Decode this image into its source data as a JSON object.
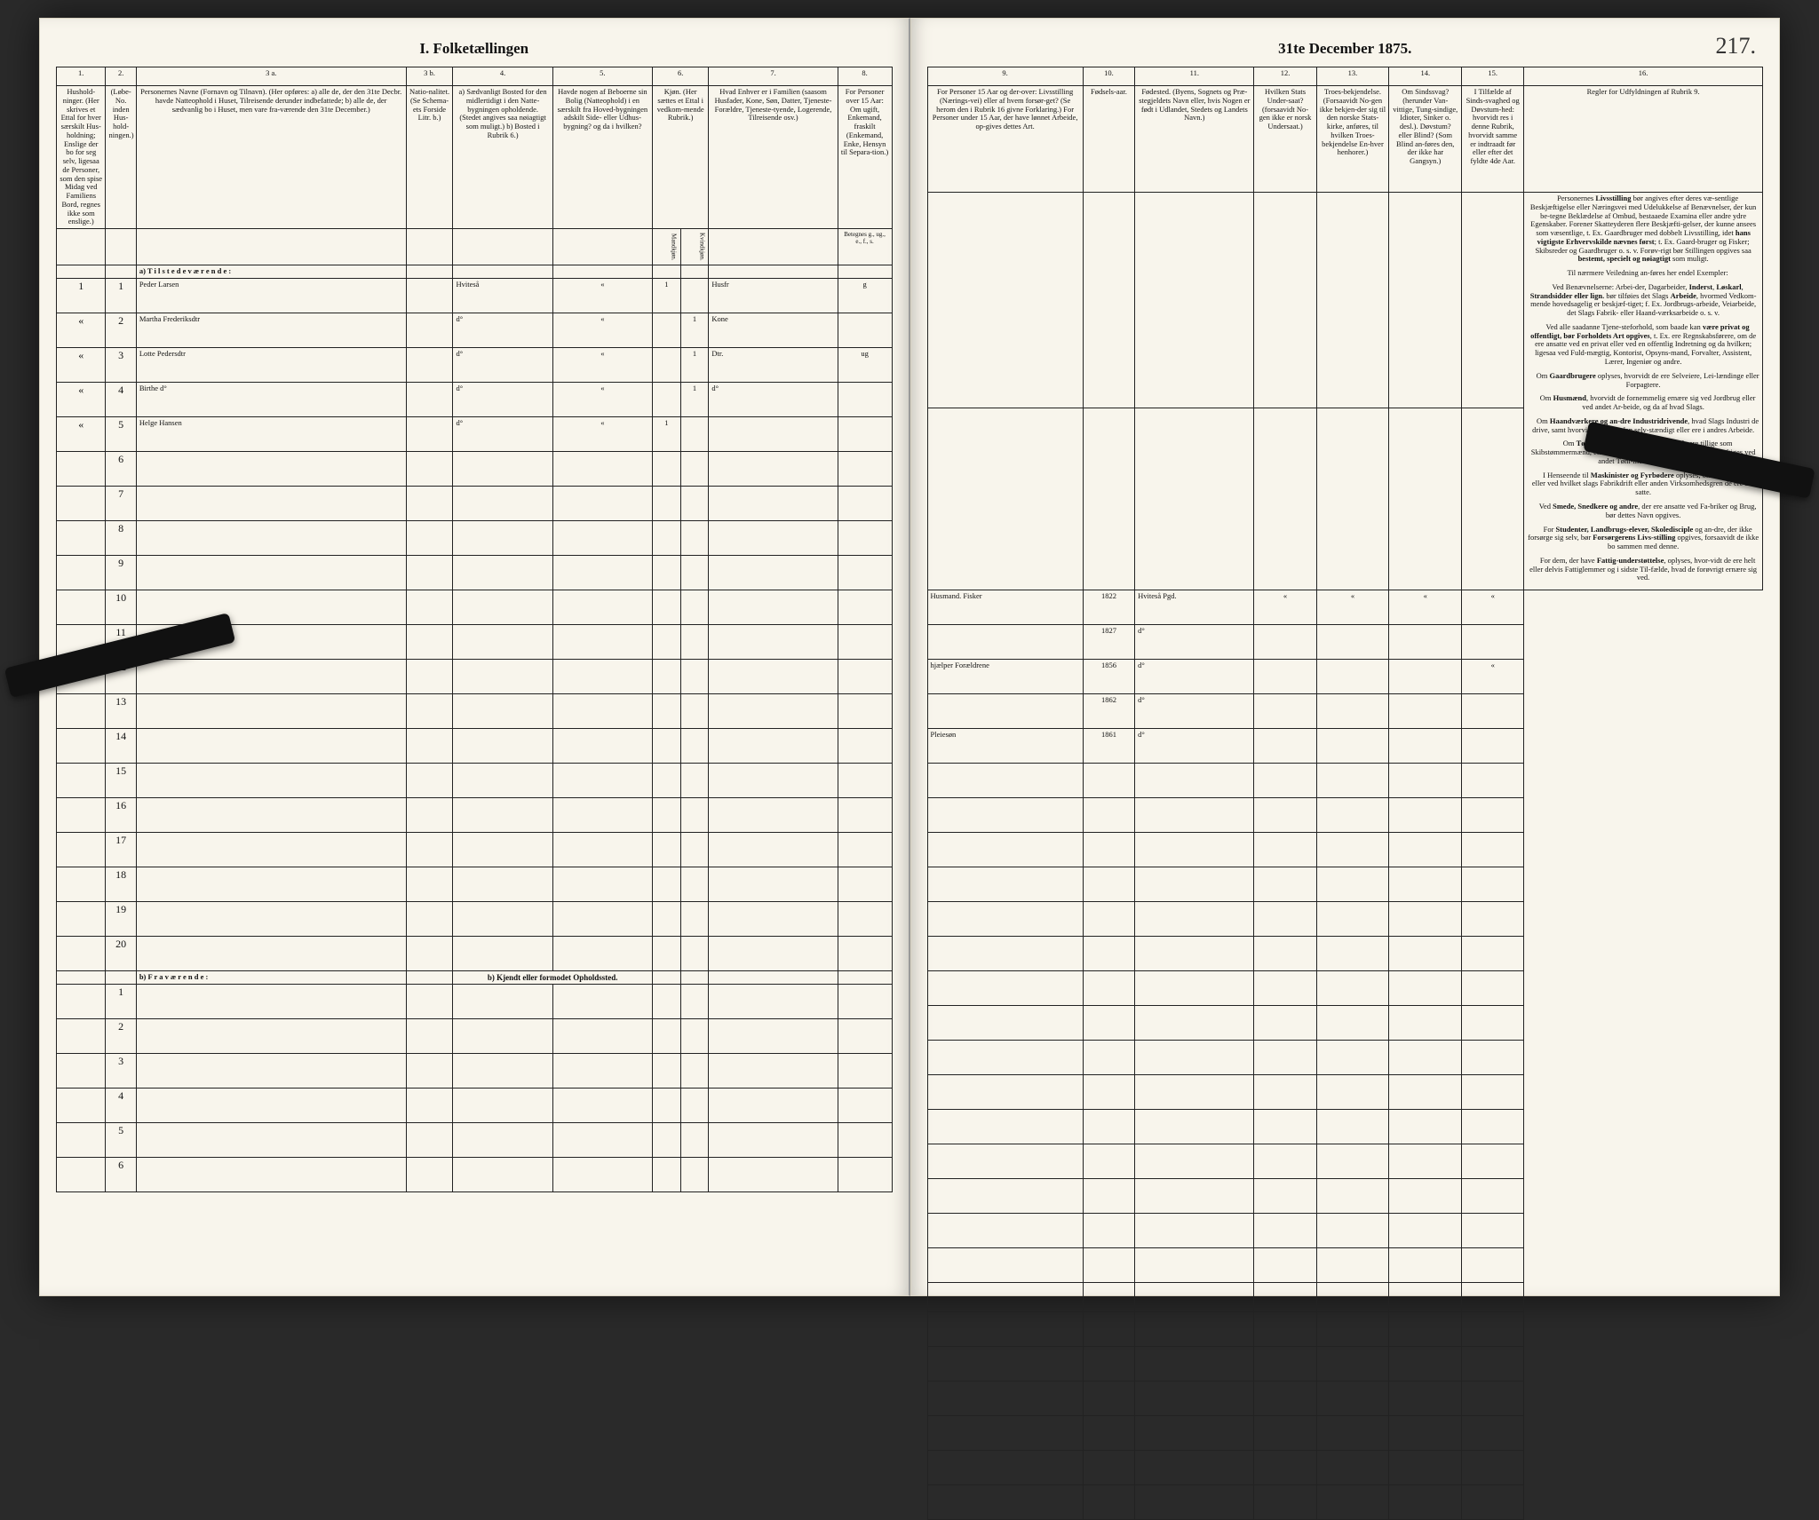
{
  "title_left": "I.  Folketællingen",
  "title_right": "31te December 1875.",
  "page_number": "217.",
  "columns_left": [
    {
      "num": "1.",
      "text": "Hushold-\nninger.\n(Her skrives et Ettal for hver særskilt Hus-holdning; Enslige der bo for seg selv, ligesaa de Personer, som den spise Midag ved Familiens Bord, regnes ikke som enslige.)"
    },
    {
      "num": "2.",
      "text": "(Løbe-No. inden Hus-hold-ningen.)"
    },
    {
      "num": "3 a.",
      "text": "Personernes Navne (Fornavn og Tilnavn).\n(Her opføres:\na) alle de, der den 31te Decbr. havde Natteophold i Huset, Tilreisende derunder indbefattede;\nb) alle de, der sædvanlig bo i Huset, men vare fra-værende den 31te December.)"
    },
    {
      "num": "3 b.",
      "text": "Natio-nalitet.\n(Se Schema-ets Forside Litr. b.)"
    },
    {
      "num": "4.",
      "text": "a) Sædvanligt Bosted for den midlertidigt i den Natte-bygningen opholdende.\n(Stedet angives saa nøiagtigt som muligt.)\nb) Bosted i Rubrik 6.)"
    },
    {
      "num": "5.",
      "text": "Havde nogen af Beboerne sin Bolig (Natteophold) i en særskilt fra Hoved-bygningen adskilt Side- eller Udhus-bygning? og da i hvilken?"
    },
    {
      "num": "6.",
      "text": "Kjøn.\n(Her sættes et Ettal i vedkom-mende Rubrik.)"
    },
    {
      "num": "7.",
      "text": "Hvad Enhver er i Familien\n(saasom Husfader, Kone, Søn, Datter, Tjeneste-Forældre, Tjeneste-tyende, Logerende, Tilreisende osv.)"
    },
    {
      "num": "8.",
      "text": "For Personer over 15 Aar: Om ugift, Enkemand, fraskilt (Enkemand, Enke, Hensyn til Separa-tion.)"
    }
  ],
  "columns_right": [
    {
      "num": "9.",
      "text": "For Personer 15 Aar og der-over: Livsstilling (Nærings-vei) eller af hvem forsør-get? (Se herom den i Rubrik 16 givne Forklaring.)\nFor Personer under 15 Aar, der have lønnet Arbeide, op-gives dettes Art."
    },
    {
      "num": "10.",
      "text": "Fødsels-aar."
    },
    {
      "num": "11.",
      "text": "Fødested.\n(Byens, Sognets og Præ-stegjeldets Navn eller, hvis Nogen er født i Udlandet, Stedets og Landets Navn.)"
    },
    {
      "num": "12.",
      "text": "Hvilken Stats Under-saat?\n(forsaavidt No-gen ikke er norsk Undersaat.)"
    },
    {
      "num": "13.",
      "text": "Troes-bekjendelse.\n(Forsaavidt No-gen ikke bekjen-der sig til den norske Stats-kirke, anføres, til hvilken Troes-bekjendelse En-hver henhorer.)"
    },
    {
      "num": "14.",
      "text": "Om Sindssvag? (herunder Van-vittige, Tung-sindige, Idioter, Sinker o. desl.).\nDøvstum? eller Blind? (Som Blind an-føres den, der ikke har Gangsyn.)"
    },
    {
      "num": "15.",
      "text": "I Tilfælde af Sinds-svaghed og Døvstum-hed: hvorvidt res i denne Rubrik, hvorvidt samme er indtraadt før eller efter det fyldte 4de Aar."
    },
    {
      "num": "16.",
      "text": "Regler for Udfyldningen af Rubrik 9."
    }
  ],
  "sub6": [
    "Mandkjøn.",
    "Kvindkjøn."
  ],
  "sub8": [
    "Betegnes g., ug., e., f., s."
  ],
  "section_a": "a)  T i l s t e d e v æ r e n d e :",
  "section_b": "b)  F r a v æ r e n d e :",
  "section_b_note": "b) Kjendt eller formodet Opholdssted.",
  "entries": [
    {
      "n": "1",
      "p": "1",
      "name": "Peder  Larsen",
      "nat": "",
      "res": "Hviteså",
      "x": "«",
      "m": "1",
      "k": "",
      "fam": "Husfr",
      "civ": "g",
      "occ": "Husmand. Fisker",
      "fy": "1822",
      "fp": "Hviteså Pgd.",
      "u": "«",
      "t": "«",
      "s": "«",
      "d": "«"
    },
    {
      "n": "«",
      "p": "2",
      "name": "Martha  Frederiksdtr",
      "nat": "",
      "res": "d°",
      "x": "«",
      "m": "",
      "k": "1",
      "fam": "Kone",
      "civ": "",
      "occ": "",
      "fy": "1827",
      "fp": "d°",
      "u": "",
      "t": "",
      "s": "",
      "d": ""
    },
    {
      "n": "«",
      "p": "3",
      "name": "Lotte  Pedersdtr",
      "nat": "",
      "res": "d°",
      "x": "«",
      "m": "",
      "k": "1",
      "fam": "Dtr.",
      "civ": "ug",
      "occ": "hjælper Forældrene",
      "fy": "1856",
      "fp": "d°",
      "u": "",
      "t": "",
      "s": "",
      "d": "«"
    },
    {
      "n": "«",
      "p": "4",
      "name": "Birthe        d°",
      "nat": "",
      "res": "d°",
      "x": "«",
      "m": "",
      "k": "1",
      "fam": "d°",
      "civ": "",
      "occ": "",
      "fy": "1862",
      "fp": "d°",
      "u": "",
      "t": "",
      "s": "",
      "d": ""
    },
    {
      "n": "«",
      "p": "5",
      "name": "Helge   Hansen",
      "nat": "",
      "res": "d°",
      "x": "«",
      "m": "1",
      "k": "",
      "fam": "",
      "civ": "",
      "occ": "Pleiesøn",
      "fy": "1861",
      "fp": "d°",
      "u": "",
      "t": "",
      "s": "",
      "d": ""
    }
  ],
  "empty_rows_a": [
    "6",
    "7",
    "8",
    "9",
    "10",
    "11",
    "12",
    "13",
    "14",
    "15",
    "16",
    "17",
    "18",
    "19",
    "20"
  ],
  "empty_rows_b": [
    "1",
    "2",
    "3",
    "4",
    "5",
    "6"
  ],
  "rules_paragraphs": [
    "Personernes <b>Livsstilling</b> bør angives efter deres væ-sentlige Beskjæftigelse eller Næringsvei med Udelukkelse af Benævnelser, der kun be-tegne Beklædelse af Ombud, bestaaede Examina eller andre ydre Egenskaber. Forener Skatteyderen flere Beskjæfti-gelser, der kunne ansees som væsentlige, t. Ex. Gaardbruger med dobbelt Livsstilling, idet <b>hans vigtigste Erhvervskilde nævnes først</b>; t. Ex. Gaard-bruger og Fisker; Skibsreder og Gaardbruger o. s. v. Forøv-rigt bør Stillingen opgives saa <b>bestemt, specielt og nøiagtigt</b> som muligt.",
    "Til nærmere Veiledning an-føres her endel Exempler:",
    "Ved Benævnelserne: Arbei-der, Dagarbeider, <b>Inderst</b>, <b>Løskarl</b>, <b>Strandsidder eller lign.</b> bør tilføies det Slags <b>Arbeide</b>, hvormed Vedkom-mende hovedsagelig er beskjæf-tiget; f. Ex. Jordbrugs-arbeide, Veiarbeide, det Slags Fabrik- eller Haand-værksarbeide o. s. v.",
    "Ved alle saadanne Tjene-steforhold, som baade kan <b>være privat og offentligt, bør Forholdets Art opgives</b>, t. Ex. ere Regnskabsførere, om de ere ansatte ved en privat eller ved en offentlig Indretning og da hvilken; ligesaa ved Fuld-mægtig, Kontorist, Opsyns-mand, Forvalter, Assistent, Lærer, Ingeniør og andre.",
    "Om <b>Gaardbrugere</b> oplyses, hvorvidt de ere Selveiere, Lei-lændinge eller Forpagtere.",
    "Om <b>Husmænd</b>, hvorvidt de fornemmelig ernære sig ved Jordbrug eller ved andet Ar-beide, og da af hvad Slags.",
    "Om <b>Haandværkere og an-dre Industridrivende</b>, hvad Slags Industri de drive, samt hvorvidt de drive den selv-stændigt eller ere i andres Arbeide.",
    "Om <b>Tømmermænd</b> oplyses, hvorvidt de ere tillige som Skibstømmermænd, eller ar-beide paa Skibsværfter, eller beskjæftiges ved andet Tøm-mermandsarbeide.",
    "I Henseende til <b>Maskinister og Fyrbødere</b> oplyses, om de fare tilsøs eller ved hvilket slags Fabrikdrift eller anden Virksomhedsgren de ere an-satte.",
    "Ved <b>Smede, Snedkere og andre</b>, der ere ansatte ved Fa-briker og Brug, bør dettes Navn opgives.",
    "For <b>Studenter, Landbrugs-elever, Skoledisciple</b> og an-dre, der ikke forsørge sig selv, bør <b>Forsørgerens Livs-stilling</b> opgives, forsaavidt de ikke bo sammen med denne.",
    "For dem, der have <b>Fattig-understøttelse</b>, oplyses, hvor-vidt de ere helt eller delvis Fattiglemmer og i sidste Til-fælde, hvad de forøvrigt ernære sig ved."
  ]
}
